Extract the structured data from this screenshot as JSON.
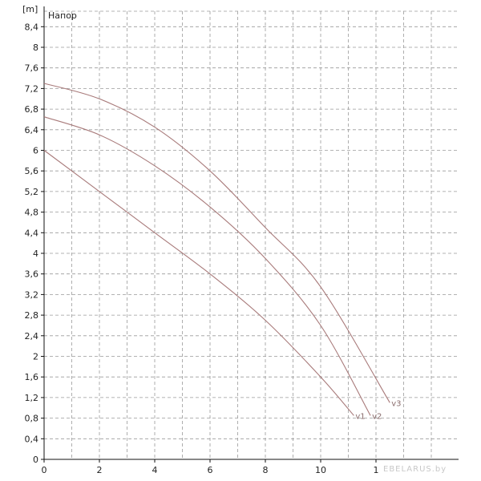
{
  "chart_data": {
    "type": "line",
    "title": "Напор",
    "ylabel": "[m]",
    "xlabel": "",
    "xlim": [
      0,
      15
    ],
    "ylim": [
      0,
      8.8
    ],
    "x_ticks": [
      "0",
      "2",
      "4",
      "6",
      "8",
      "10",
      "1"
    ],
    "y_ticks": [
      "0",
      "0,4",
      "0,8",
      "1,2",
      "1,6",
      "2",
      "2,4",
      "2,8",
      "3,2",
      "3,6",
      "4",
      "4,4",
      "4,8",
      "5,2",
      "5,6",
      "6",
      "6,4",
      "6,8",
      "7,2",
      "7,6",
      "8",
      "8,4"
    ],
    "grid": true,
    "series": [
      {
        "name": "v1",
        "x": [
          0,
          2,
          4,
          6,
          8,
          10,
          11.2
        ],
        "y": [
          6.0,
          5.2,
          4.4,
          3.6,
          2.7,
          1.6,
          0.85
        ]
      },
      {
        "name": "v2",
        "x": [
          0,
          2,
          4,
          6,
          8,
          10,
          11.8
        ],
        "y": [
          6.65,
          6.3,
          5.7,
          4.9,
          3.9,
          2.6,
          0.85
        ]
      },
      {
        "name": "v3",
        "x": [
          0,
          2,
          4,
          6,
          8,
          10,
          12.5
        ],
        "y": [
          7.3,
          7.0,
          6.45,
          5.6,
          4.5,
          3.35,
          1.1
        ]
      }
    ],
    "colors": {
      "curve": "#a87a7a",
      "grid": "#9a9a9a",
      "axis": "#111111"
    }
  },
  "watermark": "EBELARUS.by"
}
